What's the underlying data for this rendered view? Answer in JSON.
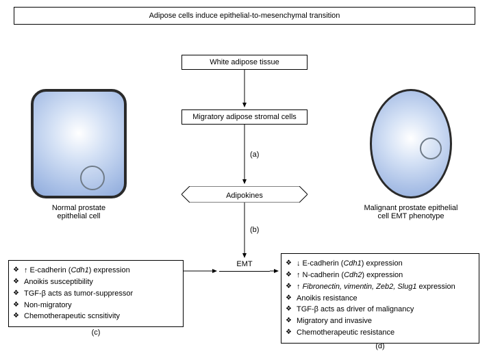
{
  "title": "Adipose cells induce epithelial-to-mesenchymal transition",
  "flow": {
    "node1": "White adipose tissue",
    "node2": "Migratory adipose stromal cells",
    "node3": "Adipokines",
    "emt": "EMT",
    "edge_a": "(a)",
    "edge_b": "(b)"
  },
  "normal": {
    "caption_line1": "Normal prostate",
    "caption_line2": "epithelial cell",
    "bullets": [
      "↑ E-cadherin (Cdh1) expression",
      "Anoikis susceptibility",
      "TGF-β acts as tumor-suppressor",
      "Non-migratory",
      "Chemotherapeutic scnsitivity"
    ],
    "sublabel": "(c)"
  },
  "malignant": {
    "caption_line1": "Malignant prostate epithelial",
    "caption_line2": "cell EMT phenotype",
    "bullets": [
      "↓ E-cadherin (Cdh1) expression",
      "↑ N-cadherin (Cdh2) expression",
      "↑ Fibronectin, vimentin, Zeb2, Slug1 expression",
      "Anoikis resistance",
      "TGF-β acts as driver of malignancy",
      "Migratory and invasive",
      "Chemotherapeutic resistance"
    ],
    "sublabel": "(d)"
  },
  "style": {
    "cell_fill_outer": "#8eaadb",
    "cell_fill_inner": "#ffffff",
    "cell_border": "#2a2a2a",
    "nucleus_border": "#6f7b88",
    "bg": "#ffffff",
    "text": "#000000",
    "fontsize_body": 11,
    "fontsize_title": 11
  }
}
